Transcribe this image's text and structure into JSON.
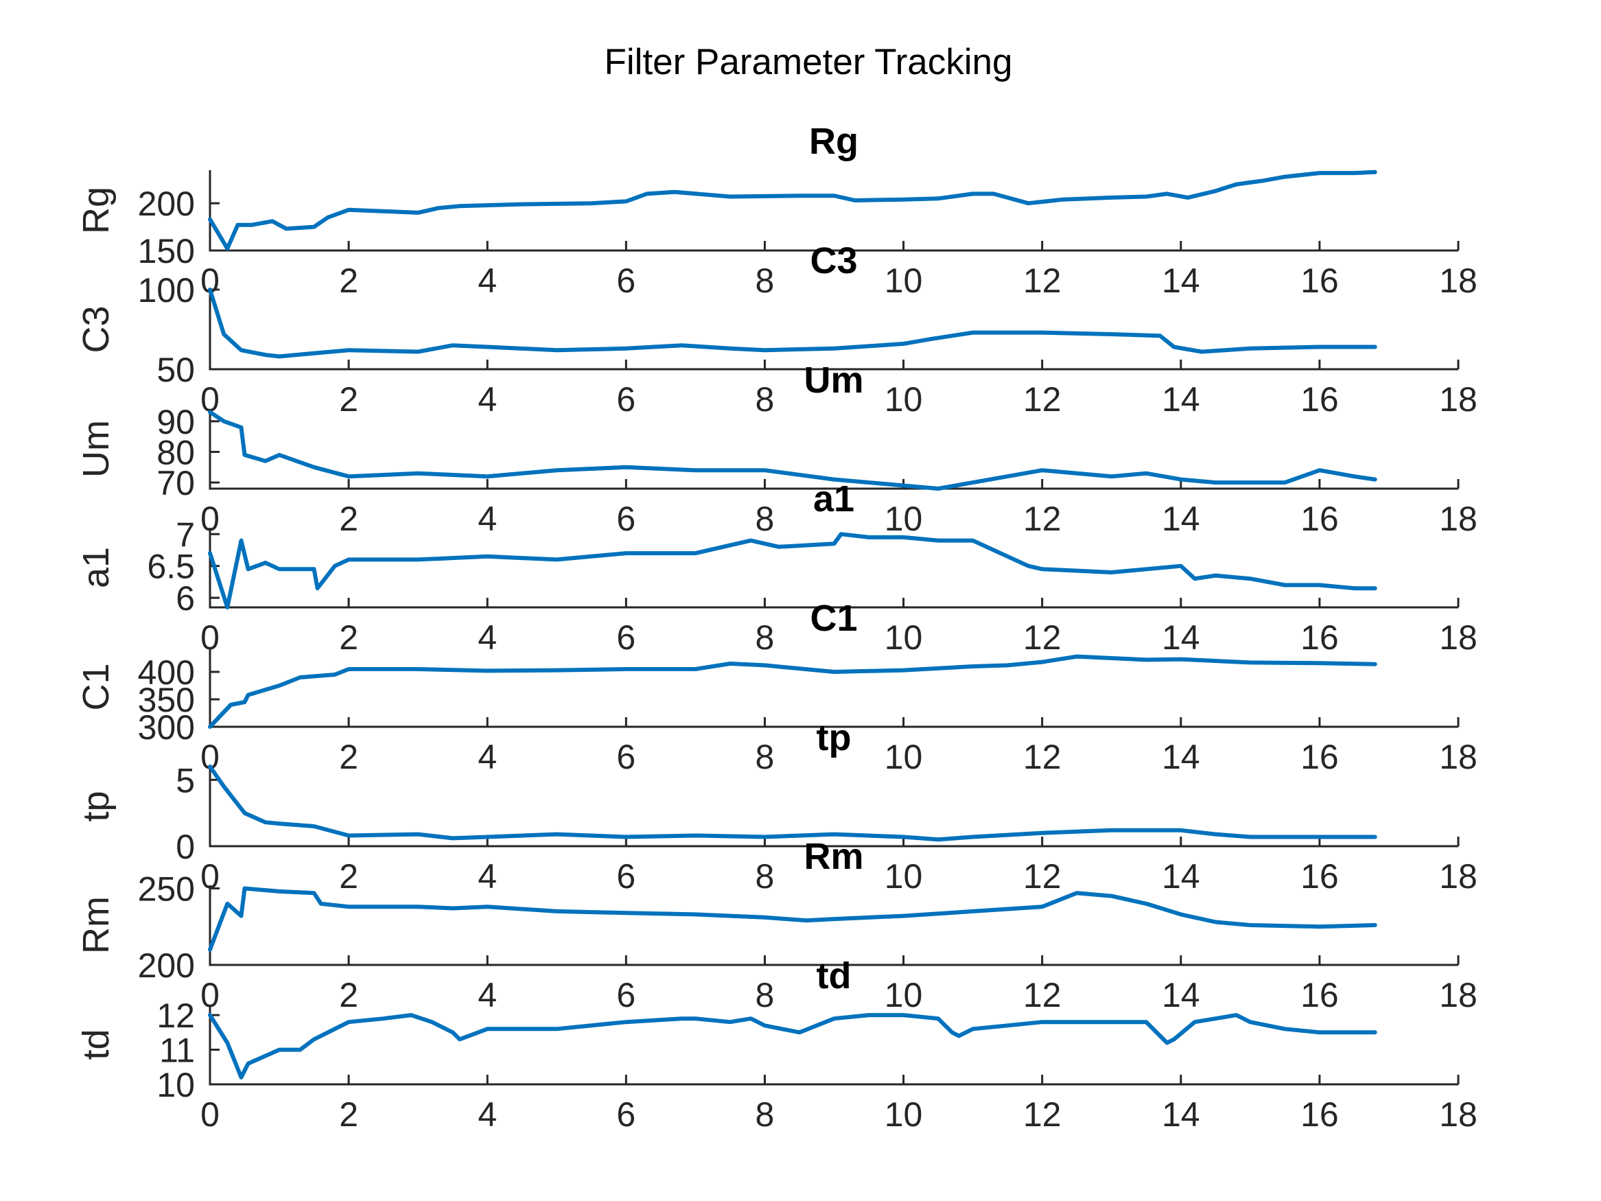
{
  "figure": {
    "suptitle": "Filter Parameter Tracking",
    "line_color": "#0072BD",
    "axis_color": "#262626"
  },
  "chart_data": [
    {
      "type": "line",
      "title": "Rg",
      "ylabel": "Rg",
      "xlabel": "",
      "xlim": [
        0,
        18
      ],
      "xticks": [
        0,
        2,
        4,
        6,
        8,
        10,
        12,
        14,
        16,
        18
      ],
      "ylim": [
        150,
        235
      ],
      "yticks": [
        150,
        200
      ],
      "grid": false,
      "x": [
        0,
        0.25,
        0.4,
        0.6,
        0.9,
        1.1,
        1.5,
        1.7,
        2.0,
        3.0,
        3.3,
        3.6,
        4.5,
        5.5,
        6.0,
        6.3,
        6.7,
        7.5,
        8.5,
        9.0,
        9.3,
        10.0,
        10.5,
        11.0,
        11.3,
        11.8,
        12.3,
        13.0,
        13.5,
        13.8,
        14.1,
        14.5,
        14.8,
        15.2,
        15.5,
        16.0,
        16.5,
        16.8
      ],
      "series": [
        {
          "values": [
            183,
            152,
            177,
            177,
            181,
            173,
            175,
            185,
            193,
            190,
            195,
            197,
            199,
            200,
            202,
            210,
            212,
            207,
            208,
            208,
            203,
            204,
            205,
            210,
            210,
            200,
            204,
            206,
            207,
            210,
            206,
            213,
            220,
            224,
            228,
            232,
            232,
            233
          ]
        }
      ]
    },
    {
      "type": "line",
      "title": "C3",
      "ylabel": "C3",
      "xlabel": "",
      "xlim": [
        0,
        18
      ],
      "xticks": [
        0,
        2,
        4,
        6,
        8,
        10,
        12,
        14,
        16,
        18
      ],
      "ylim": [
        50,
        100
      ],
      "yticks": [
        50,
        100
      ],
      "grid": false,
      "x": [
        0,
        0.2,
        0.45,
        0.8,
        1.0,
        1.5,
        2.0,
        3.0,
        3.5,
        4.0,
        5.0,
        6.0,
        6.8,
        7.5,
        8.0,
        9.0,
        10.0,
        10.4,
        11.0,
        12.0,
        13.0,
        13.7,
        13.9,
        14.3,
        15.0,
        16.0,
        16.8
      ],
      "series": [
        {
          "values": [
            100,
            72,
            62,
            59,
            58,
            60,
            62,
            61,
            65,
            64,
            62,
            63,
            65,
            63,
            62,
            63,
            66,
            69,
            73,
            73,
            72,
            71,
            64,
            61,
            63,
            64,
            64
          ]
        }
      ]
    },
    {
      "type": "line",
      "title": "Um",
      "ylabel": "Um",
      "xlabel": "",
      "xlim": [
        0,
        18
      ],
      "xticks": [
        0,
        2,
        4,
        6,
        8,
        10,
        12,
        14,
        16,
        18
      ],
      "ylim": [
        68,
        94
      ],
      "yticks": [
        70,
        80,
        90
      ],
      "grid": false,
      "x": [
        0,
        0.2,
        0.45,
        0.5,
        0.8,
        1.0,
        1.5,
        2.0,
        3.0,
        4.0,
        5.0,
        6.0,
        7.0,
        8.0,
        9.0,
        10.0,
        10.5,
        11.0,
        12.0,
        13.0,
        13.5,
        14.0,
        14.5,
        15.0,
        15.5,
        16.0,
        16.5,
        16.8
      ],
      "series": [
        {
          "values": [
            93,
            90,
            88,
            79,
            77,
            79,
            75,
            72,
            73,
            72,
            74,
            75,
            74,
            74,
            71,
            69,
            68,
            70,
            74,
            72,
            73,
            71,
            70,
            70,
            70,
            74,
            72,
            71
          ]
        }
      ]
    },
    {
      "type": "line",
      "title": "a1",
      "ylabel": "a1",
      "xlabel": "",
      "xlim": [
        0,
        18
      ],
      "xticks": [
        0,
        2,
        4,
        6,
        8,
        10,
        12,
        14,
        16,
        18
      ],
      "ylim": [
        5.85,
        7.1
      ],
      "yticks": [
        6,
        6.5,
        7
      ],
      "grid": false,
      "x": [
        0,
        0.25,
        0.45,
        0.55,
        0.8,
        1.0,
        1.5,
        1.55,
        1.8,
        2.0,
        3.0,
        4.0,
        5.0,
        6.0,
        7.0,
        7.8,
        8.2,
        9.0,
        9.1,
        9.5,
        10.0,
        10.5,
        11.0,
        11.8,
        12.0,
        13.0,
        14.0,
        14.2,
        14.5,
        15.0,
        15.5,
        16.0,
        16.5,
        16.8
      ],
      "series": [
        {
          "values": [
            6.7,
            5.85,
            6.9,
            6.45,
            6.55,
            6.45,
            6.45,
            6.15,
            6.5,
            6.6,
            6.6,
            6.65,
            6.6,
            6.7,
            6.7,
            6.9,
            6.8,
            6.85,
            7.0,
            6.95,
            6.95,
            6.9,
            6.9,
            6.5,
            6.45,
            6.4,
            6.5,
            6.3,
            6.35,
            6.3,
            6.2,
            6.2,
            6.15,
            6.15
          ]
        }
      ]
    },
    {
      "type": "line",
      "title": "C1",
      "ylabel": "C1",
      "xlabel": "",
      "xlim": [
        0,
        18
      ],
      "xticks": [
        0,
        2,
        4,
        6,
        8,
        10,
        12,
        14,
        16,
        18
      ],
      "ylim": [
        300,
        445
      ],
      "yticks": [
        300,
        350,
        400
      ],
      "grid": false,
      "x": [
        0,
        0.3,
        0.5,
        0.55,
        1.0,
        1.3,
        1.8,
        2.0,
        3.0,
        4.0,
        5.0,
        6.0,
        7.0,
        7.5,
        8.0,
        9.0,
        10.0,
        11.0,
        11.5,
        12.0,
        12.5,
        13.0,
        13.5,
        14.0,
        15.0,
        16.0,
        16.8
      ],
      "series": [
        {
          "values": [
            300,
            340,
            345,
            358,
            375,
            390,
            395,
            405,
            405,
            402,
            403,
            405,
            405,
            415,
            412,
            400,
            403,
            410,
            412,
            418,
            428,
            425,
            422,
            423,
            417,
            416,
            414
          ]
        }
      ]
    },
    {
      "type": "line",
      "title": "tp",
      "ylabel": "tp",
      "xlabel": "",
      "xlim": [
        0,
        18
      ],
      "xticks": [
        0,
        2,
        4,
        6,
        8,
        10,
        12,
        14,
        16,
        18
      ],
      "ylim": [
        0,
        6
      ],
      "yticks": [
        0,
        5
      ],
      "grid": false,
      "x": [
        0,
        0.2,
        0.5,
        0.8,
        1.0,
        1.5,
        2.0,
        3.0,
        3.5,
        4.0,
        5.0,
        6.0,
        7.0,
        8.0,
        9.0,
        10.0,
        10.5,
        11.0,
        12.0,
        13.0,
        14.0,
        14.5,
        15.0,
        16.0,
        16.8
      ],
      "series": [
        {
          "values": [
            6,
            4.5,
            2.5,
            1.8,
            1.7,
            1.5,
            0.8,
            0.9,
            0.6,
            0.7,
            0.9,
            0.7,
            0.8,
            0.7,
            0.9,
            0.7,
            0.5,
            0.7,
            1.0,
            1.2,
            1.2,
            0.9,
            0.7,
            0.7,
            0.7
          ]
        }
      ]
    },
    {
      "type": "line",
      "title": "Rm",
      "ylabel": "Rm",
      "xlabel": "",
      "xlim": [
        0,
        18
      ],
      "xticks": [
        0,
        2,
        4,
        6,
        8,
        10,
        12,
        14,
        16,
        18
      ],
      "ylim": [
        200,
        252
      ],
      "yticks": [
        200,
        250
      ],
      "grid": false,
      "x": [
        0,
        0.25,
        0.45,
        0.5,
        1.0,
        1.5,
        1.6,
        2.0,
        3.0,
        3.5,
        4.0,
        5.0,
        6.0,
        7.0,
        8.0,
        8.6,
        9.0,
        10.0,
        11.0,
        12.0,
        12.5,
        13.0,
        13.5,
        14.0,
        14.5,
        15.0,
        16.0,
        16.8
      ],
      "series": [
        {
          "values": [
            210,
            240,
            232,
            250,
            248,
            247,
            240,
            238,
            238,
            237,
            238,
            235,
            234,
            233,
            231,
            229,
            230,
            232,
            235,
            238,
            247,
            245,
            240,
            233,
            228,
            226,
            225,
            226
          ]
        }
      ]
    },
    {
      "type": "line",
      "title": "td",
      "ylabel": "td",
      "xlabel": "",
      "xlim": [
        0,
        18
      ],
      "xticks": [
        0,
        2,
        4,
        6,
        8,
        10,
        12,
        14,
        16,
        18
      ],
      "ylim": [
        10,
        12.3
      ],
      "yticks": [
        10,
        11,
        12
      ],
      "grid": false,
      "x": [
        0,
        0.25,
        0.45,
        0.55,
        1.0,
        1.3,
        1.5,
        2.0,
        2.5,
        2.9,
        3.2,
        3.5,
        3.6,
        4.0,
        5.0,
        6.0,
        6.8,
        7.0,
        7.5,
        7.8,
        8.0,
        8.5,
        9.0,
        9.5,
        10.0,
        10.5,
        10.7,
        10.8,
        11.0,
        11.5,
        12.0,
        12.5,
        13.0,
        13.5,
        13.8,
        13.9,
        14.2,
        14.8,
        15.0,
        15.5,
        16.0,
        16.5,
        16.8
      ],
      "series": [
        {
          "values": [
            12.0,
            11.2,
            10.2,
            10.6,
            11.0,
            11.0,
            11.3,
            11.8,
            11.9,
            12.0,
            11.8,
            11.5,
            11.3,
            11.6,
            11.6,
            11.8,
            11.9,
            11.9,
            11.8,
            11.9,
            11.7,
            11.5,
            11.9,
            12.0,
            12.0,
            11.9,
            11.5,
            11.4,
            11.6,
            11.7,
            11.8,
            11.8,
            11.8,
            11.8,
            11.2,
            11.3,
            11.8,
            12.0,
            11.8,
            11.6,
            11.5,
            11.5,
            11.5
          ]
        }
      ]
    }
  ]
}
